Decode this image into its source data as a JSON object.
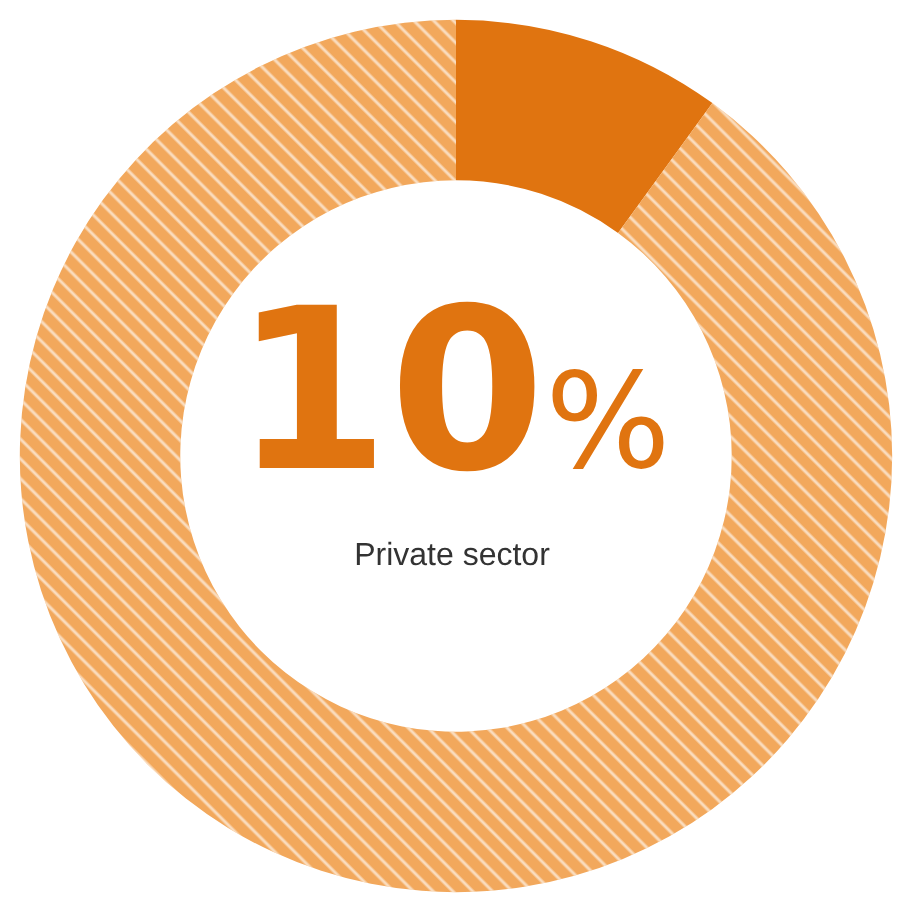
{
  "chart_data": {
    "type": "donut",
    "categories": [
      "Private sector",
      null
    ],
    "values": [
      10,
      90
    ],
    "colors": [
      "#e07410",
      "#f2a85c"
    ],
    "value_labels": [
      "10%",
      null
    ],
    "legend": false
  }
}
